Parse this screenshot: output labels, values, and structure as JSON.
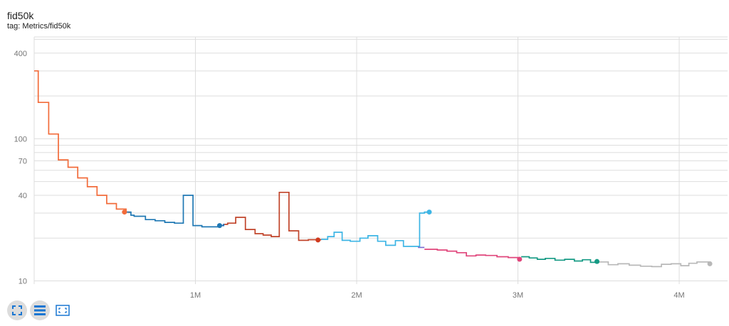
{
  "card": {
    "title": "fid50k",
    "tag": "tag: Metrics/fid50k"
  },
  "toolbar": {
    "buttons": [
      {
        "icon": "fit-domain-icon",
        "pressed": true
      },
      {
        "icon": "log-scale-icon",
        "pressed": true
      },
      {
        "icon": "select-region-icon",
        "pressed": false
      }
    ]
  },
  "colors": {
    "grid": "#dddddd",
    "axis_text": "#757575",
    "toolbar_icon": "#1976d2"
  },
  "chart_data": {
    "type": "line",
    "title": "",
    "xlabel": "",
    "ylabel": "",
    "x_scale": "linear",
    "y_scale": "log",
    "xlim": [
      0,
      4300000
    ],
    "ylim": [
      9.5,
      520
    ],
    "x_ticks": [
      {
        "value": 1000000,
        "label": "1M"
      },
      {
        "value": 2000000,
        "label": "2M"
      },
      {
        "value": 3000000,
        "label": "3M"
      },
      {
        "value": 4000000,
        "label": "4M"
      }
    ],
    "y_ticks": [
      {
        "value": 10,
        "label": "10"
      },
      {
        "value": 40,
        "label": "40"
      },
      {
        "value": 70,
        "label": "70"
      },
      {
        "value": 100,
        "label": "100"
      },
      {
        "value": 400,
        "label": "400"
      }
    ],
    "grid": true,
    "legend": "none",
    "series": [
      {
        "color": "#f26b3a",
        "x": [
          0,
          25000,
          90000,
          150000,
          210000,
          270000,
          330000,
          390000,
          450000,
          510000,
          570000,
          590000
        ],
        "y": [
          300,
          180,
          108,
          71,
          63,
          53,
          46,
          40,
          35,
          32,
          30.5,
          30
        ]
      },
      {
        "color": "#1f78b4",
        "x": [
          560000,
          570000,
          600000,
          620000,
          690000,
          750000,
          810000,
          870000,
          925000,
          985000,
          1040000,
          1150000,
          1175000
        ],
        "y": [
          30.5,
          30.5,
          29,
          28.5,
          27,
          26.5,
          25.8,
          25.5,
          40,
          24.5,
          24,
          24.5,
          24.5
        ]
      },
      {
        "color": "#2166ac",
        "x": [
          1150000,
          1175000,
          1180000
        ],
        "y": [
          24.5,
          25,
          25
        ]
      },
      {
        "color": "#c1442a",
        "x": [
          1180000,
          1200000,
          1250000,
          1310000,
          1370000,
          1420000,
          1470000,
          1520000,
          1580000,
          1640000,
          1700000,
          1780000
        ],
        "y": [
          25,
          25.5,
          28,
          23,
          21.5,
          21,
          20.5,
          42,
          22.5,
          19.3,
          19.5,
          19.4
        ]
      },
      {
        "color": "#3db5e5",
        "x": [
          1780000,
          1820000,
          1860000,
          1910000,
          1960000,
          2020000,
          2070000,
          2130000,
          2180000,
          2240000,
          2290000,
          2340000,
          2390000,
          2420000,
          2450000
        ],
        "y": [
          19.6,
          20.5,
          22,
          19.3,
          19,
          20,
          20.8,
          19,
          17.8,
          19.2,
          17.5,
          17.5,
          30,
          30.5,
          30.5
        ]
      },
      {
        "color": "#7b6fd0",
        "x": [
          2380000,
          2420000
        ],
        "y": [
          17.2,
          17.2
        ]
      },
      {
        "color": "#e0457b",
        "x": [
          2420000,
          2500000,
          2560000,
          2620000,
          2680000,
          2740000,
          2800000,
          2870000,
          2940000,
          3000000,
          3020000
        ],
        "y": [
          16.7,
          16.5,
          16.2,
          15.8,
          15,
          15.2,
          15.1,
          14.8,
          14.6,
          14.3,
          14.2
        ]
      },
      {
        "color": "#159a84",
        "x": [
          3020000,
          3070000,
          3120000,
          3170000,
          3230000,
          3290000,
          3350000,
          3400000,
          3450000,
          3500000
        ],
        "y": [
          14.8,
          14.5,
          14.2,
          14.4,
          14,
          14.2,
          13.8,
          14.1,
          13.5,
          13.7
        ]
      },
      {
        "color": "#b8b8b8",
        "x": [
          3500000,
          3560000,
          3620000,
          3690000,
          3760000,
          3830000,
          3890000,
          3950000,
          4010000,
          4060000,
          4110000,
          4190000
        ],
        "y": [
          13.6,
          13,
          13.2,
          12.9,
          12.7,
          12.6,
          13.1,
          13.2,
          12.8,
          13.3,
          13.6,
          13.2
        ]
      }
    ],
    "end_markers": [
      {
        "x": 560000,
        "y": 30.5,
        "color": "#f26b3a"
      },
      {
        "x": 1150000,
        "y": 24.5,
        "color": "#1f78b4"
      },
      {
        "x": 1760000,
        "y": 19.4,
        "color": "#d03a1e"
      },
      {
        "x": 2450000,
        "y": 30.5,
        "color": "#3db5e5"
      },
      {
        "x": 3010000,
        "y": 14.2,
        "color": "#e0457b"
      },
      {
        "x": 3490000,
        "y": 13.7,
        "color": "#159a84"
      },
      {
        "x": 4190000,
        "y": 13.2,
        "color": "#b8b8b8"
      }
    ]
  }
}
